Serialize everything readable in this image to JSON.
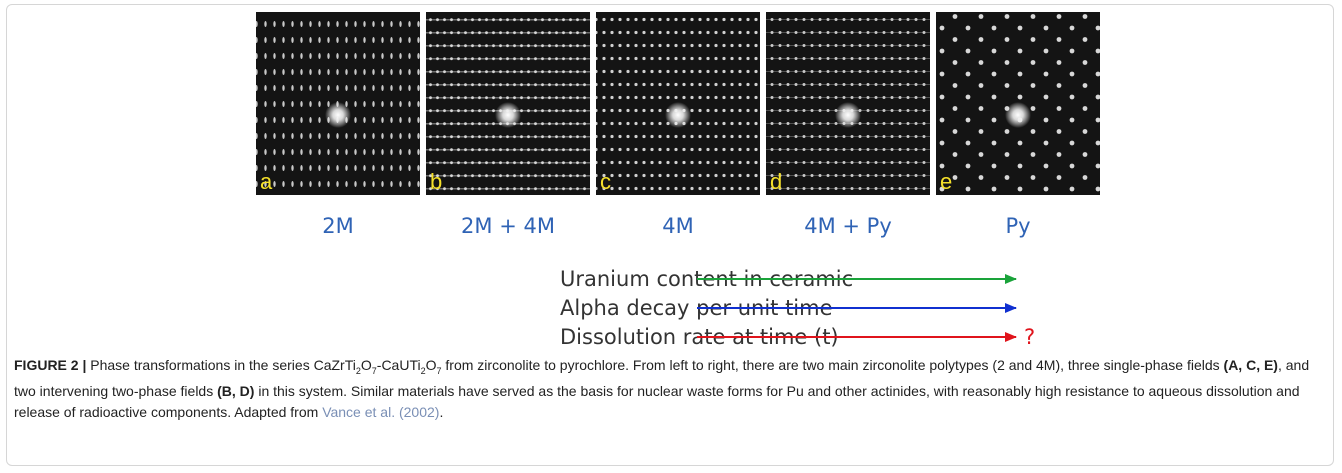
{
  "figure": {
    "panels": [
      {
        "letter": "a",
        "phase": "2M"
      },
      {
        "letter": "b",
        "phase": "2M + 4M"
      },
      {
        "letter": "c",
        "phase": "4M"
      },
      {
        "letter": "d",
        "phase": "4M + Py"
      },
      {
        "letter": "e",
        "phase": "Py"
      }
    ],
    "phase_color": "#2f63b5",
    "letter_color": "#f5e02a",
    "arrows": [
      {
        "label": "Uranium content in ceramic",
        "color": "#1aa33a"
      },
      {
        "label": "Alpha decay per unit time",
        "color": "#1030d0"
      },
      {
        "label": "Dissolution rate at time (t)",
        "color": "#e0141c",
        "note": "?"
      }
    ],
    "caption": {
      "label": "FIGURE 2 |",
      "segments": [
        {
          "text": " Phase transformations in the series CaZrTi",
          "style": "normal"
        },
        {
          "text": "2",
          "style": "sub"
        },
        {
          "text": "O",
          "style": "normal"
        },
        {
          "text": "7",
          "style": "sub"
        },
        {
          "text": "-CaUTi",
          "style": "normal"
        },
        {
          "text": "2",
          "style": "sub"
        },
        {
          "text": "O",
          "style": "normal"
        },
        {
          "text": "7",
          "style": "sub"
        },
        {
          "text": " from zirconolite to pyrochlore. From left to right, there are two main zirconolite polytypes (2 and 4M), three single-phase fields ",
          "style": "normal"
        },
        {
          "text": "(A, C, E)",
          "style": "bold"
        },
        {
          "text": ", and two intervening two-phase fields ",
          "style": "normal"
        },
        {
          "text": "(B, D)",
          "style": "bold"
        },
        {
          "text": " in this system. Similar materials have served as the basis for nuclear waste forms for Pu and other actinides, with reasonably high resistance to aqueous dissolution and release of radioactive components. Adapted from ",
          "style": "normal"
        },
        {
          "text": "Vance et al. (2002)",
          "style": "link"
        },
        {
          "text": ".",
          "style": "normal"
        }
      ]
    }
  }
}
